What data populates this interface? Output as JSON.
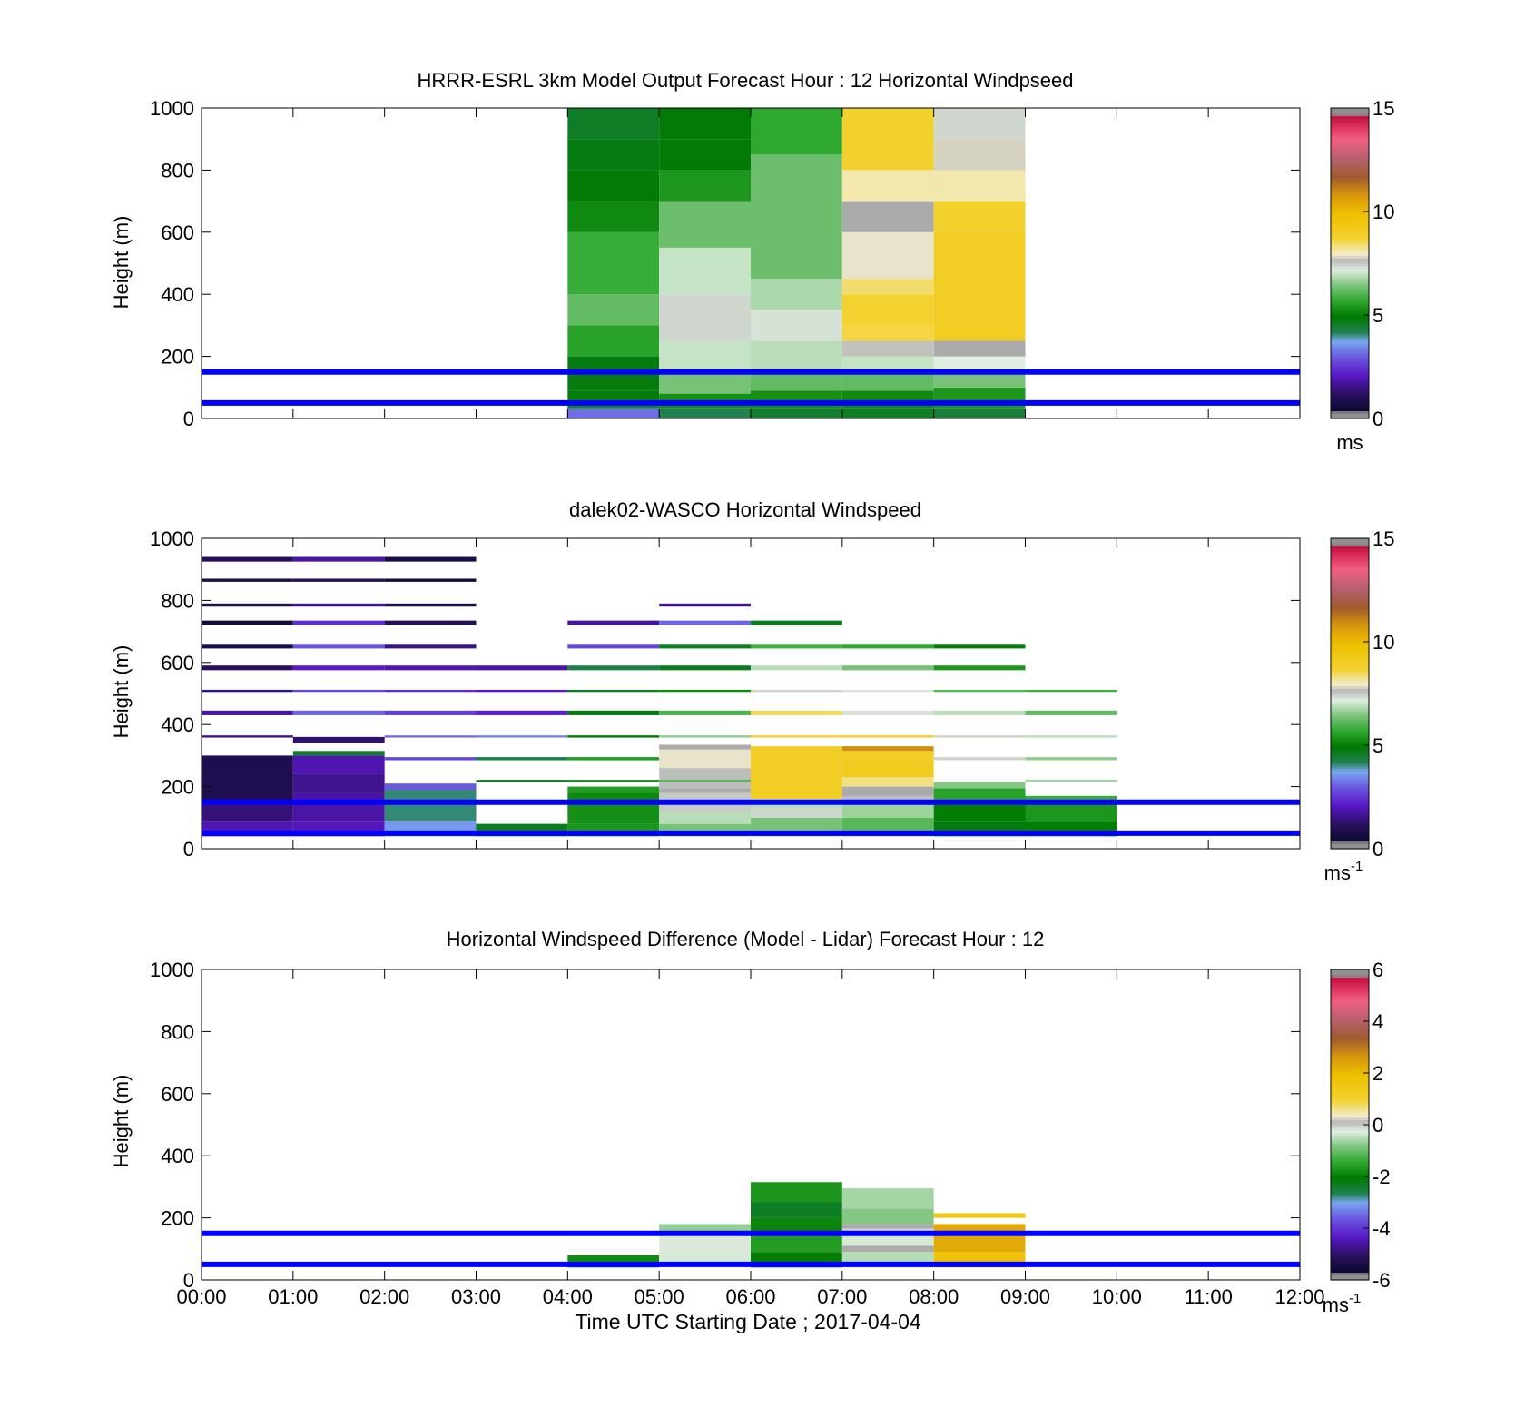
{
  "figure": {
    "xlabel": "Time UTC  Starting Date ; 2017-04-04",
    "x_ticks": [
      "00:00",
      "01:00",
      "02:00",
      "03:00",
      "04:00",
      "05:00",
      "06:00",
      "07:00",
      "08:00",
      "09:00",
      "10:00",
      "11:00",
      "12:00"
    ]
  },
  "chart_data": [
    {
      "type": "heatmap",
      "title": "HRRR-ESRL 3km Model Output   Forecast Hour : 12 Horizontal Windpseed",
      "ylabel": "Height (m)",
      "xlim": [
        0,
        12
      ],
      "ylim": [
        0,
        1000
      ],
      "y_ticks": [
        0,
        200,
        400,
        600,
        800,
        1000
      ],
      "grid": false,
      "colorbar": {
        "min": 0,
        "max": 15,
        "ticks": [
          0,
          5,
          10,
          15
        ],
        "unit": "ms",
        "unit_sup": ""
      },
      "reference_lines_m": [
        50,
        150
      ],
      "cells": [
        {
          "x0": 4,
          "x1": 5,
          "bands": [
            [
              0,
              30,
              3.2
            ],
            [
              30,
              60,
              4.5
            ],
            [
              60,
              90,
              5.0
            ],
            [
              90,
              200,
              4.8
            ],
            [
              200,
              300,
              5.6
            ],
            [
              300,
              400,
              6.2
            ],
            [
              400,
              600,
              5.8
            ],
            [
              600,
              700,
              5.2
            ],
            [
              700,
              800,
              4.9
            ],
            [
              800,
              900,
              4.8
            ],
            [
              900,
              1000,
              4.6
            ]
          ]
        },
        {
          "x0": 5,
          "x1": 6,
          "bands": [
            [
              0,
              30,
              4.2
            ],
            [
              30,
              80,
              5.3
            ],
            [
              80,
              150,
              6.4
            ],
            [
              150,
              250,
              7.0
            ],
            [
              250,
              400,
              7.4
            ],
            [
              400,
              550,
              7.0
            ],
            [
              550,
              700,
              6.3
            ],
            [
              700,
              800,
              5.4
            ],
            [
              800,
              900,
              4.9
            ],
            [
              900,
              1000,
              4.9
            ]
          ]
        },
        {
          "x0": 6,
          "x1": 7,
          "bands": [
            [
              0,
              30,
              4.5
            ],
            [
              30,
              90,
              5.3
            ],
            [
              90,
              150,
              6.2
            ],
            [
              150,
              250,
              6.9
            ],
            [
              250,
              350,
              7.3
            ],
            [
              350,
              450,
              6.8
            ],
            [
              450,
              850,
              6.3
            ],
            [
              850,
              1000,
              5.7
            ]
          ]
        },
        {
          "x0": 7,
          "x1": 8,
          "bands": [
            [
              0,
              30,
              4.6
            ],
            [
              30,
              90,
              5.2
            ],
            [
              90,
              150,
              6.2
            ],
            [
              150,
              200,
              7.0
            ],
            [
              200,
              250,
              7.7
            ],
            [
              250,
              300,
              8.6
            ],
            [
              300,
              400,
              8.7
            ],
            [
              400,
              450,
              8.4
            ],
            [
              450,
              600,
              7.9
            ],
            [
              600,
              700,
              "gray"
            ],
            [
              700,
              800,
              8.1
            ],
            [
              800,
              1000,
              8.8
            ]
          ]
        },
        {
          "x0": 8,
          "x1": 9,
          "bands": [
            [
              0,
              30,
              4.4
            ],
            [
              30,
              100,
              5.4
            ],
            [
              100,
              150,
              6.4
            ],
            [
              150,
              200,
              7.2
            ],
            [
              200,
              250,
              "gray"
            ],
            [
              250,
              600,
              9.0
            ],
            [
              600,
              700,
              8.8
            ],
            [
              700,
              800,
              8.1
            ],
            [
              800,
              900,
              7.8
            ],
            [
              900,
              1000,
              7.4
            ]
          ]
        }
      ]
    },
    {
      "type": "heatmap",
      "title": "dalek02-WASCO  Horizontal Windspeed",
      "ylabel": "Height (m)",
      "xlim": [
        0,
        12
      ],
      "ylim": [
        0,
        1000
      ],
      "y_ticks": [
        0,
        200,
        400,
        600,
        800,
        1000
      ],
      "grid": false,
      "colorbar": {
        "min": 0,
        "max": 15,
        "ticks": [
          0,
          5,
          10,
          15
        ],
        "unit": "ms",
        "unit_sup": "-1"
      },
      "reference_lines_m": [
        50,
        150
      ],
      "cells": [
        {
          "x0": 0,
          "x1": 1,
          "bands": [
            [
              40,
              90,
              1.9
            ],
            [
              90,
              150,
              1.4
            ],
            [
              150,
              300,
              0.9
            ],
            [
              430,
              445,
              1.8
            ],
            [
              575,
              590,
              1.2
            ],
            [
              645,
              660,
              0.8
            ],
            [
              720,
              735,
              0.6
            ],
            [
              925,
              940,
              1.1
            ],
            [
              860,
              870,
              0.8
            ],
            [
              780,
              790,
              0.8
            ],
            [
              505,
              512,
              1.5
            ],
            [
              358,
              365,
              1.6
            ]
          ]
        },
        {
          "x0": 1,
          "x1": 2,
          "bands": [
            [
              40,
              90,
              2.0
            ],
            [
              90,
              180,
              1.8
            ],
            [
              180,
              240,
              1.6
            ],
            [
              240,
              300,
              1.9
            ],
            [
              300,
              315,
              4.5
            ],
            [
              340,
              360,
              1.3
            ],
            [
              430,
              445,
              3.1
            ],
            [
              575,
              590,
              2.1
            ],
            [
              645,
              660,
              2.9
            ],
            [
              720,
              735,
              2.4
            ],
            [
              925,
              940,
              1.8
            ],
            [
              860,
              870,
              1.1
            ],
            [
              780,
              790,
              1.6
            ],
            [
              505,
              512,
              2.8
            ]
          ]
        },
        {
          "x0": 2,
          "x1": 3,
          "bands": [
            [
              40,
              90,
              3.6
            ],
            [
              90,
              190,
              4.1
            ],
            [
              190,
              210,
              3.0
            ],
            [
              430,
              445,
              2.6
            ],
            [
              575,
              590,
              1.9
            ],
            [
              645,
              660,
              1.5
            ],
            [
              720,
              735,
              1.0
            ],
            [
              925,
              940,
              0.8
            ],
            [
              860,
              870,
              0.6
            ],
            [
              780,
              790,
              0.9
            ],
            [
              505,
              512,
              2.4
            ],
            [
              358,
              365,
              3.2
            ],
            [
              285,
              295,
              2.8
            ]
          ]
        },
        {
          "x0": 3,
          "x1": 4,
          "bands": [
            [
              40,
              80,
              4.7
            ],
            [
              430,
              445,
              2.2
            ],
            [
              575,
              590,
              1.8
            ],
            [
              505,
              512,
              2.1
            ],
            [
              358,
              365,
              3.4
            ],
            [
              285,
              295,
              4.3
            ],
            [
              215,
              222,
              4.6
            ]
          ]
        },
        {
          "x0": 4,
          "x1": 5,
          "bands": [
            [
              40,
              80,
              5.4
            ],
            [
              80,
              150,
              5.3
            ],
            [
              150,
              180,
              5.2
            ],
            [
              180,
              200,
              5.5
            ],
            [
              430,
              445,
              4.8
            ],
            [
              575,
              590,
              4.3
            ],
            [
              645,
              660,
              2.7
            ],
            [
              720,
              735,
              1.7
            ],
            [
              505,
              512,
              4.6
            ],
            [
              358,
              365,
              4.9
            ],
            [
              285,
              295,
              5.5
            ],
            [
              215,
              222,
              5.3
            ]
          ]
        },
        {
          "x0": 5,
          "x1": 6,
          "bands": [
            [
              40,
              80,
              6.4
            ],
            [
              80,
              120,
              6.9
            ],
            [
              120,
              180,
              7.5
            ],
            [
              180,
              195,
              "gray"
            ],
            [
              195,
              260,
              7.6
            ],
            [
              260,
              320,
              7.9
            ],
            [
              320,
              335,
              "gray"
            ],
            [
              430,
              445,
              6.0
            ],
            [
              575,
              590,
              4.7
            ],
            [
              645,
              660,
              4.6
            ],
            [
              720,
              735,
              3.1
            ],
            [
              780,
              790,
              1.6
            ],
            [
              505,
              512,
              5.2
            ],
            [
              358,
              365,
              6.6
            ],
            [
              215,
              222,
              6.1
            ]
          ]
        },
        {
          "x0": 6,
          "x1": 7,
          "bands": [
            [
              40,
              100,
              6.4
            ],
            [
              100,
              130,
              7.4
            ],
            [
              130,
              160,
              6.9
            ],
            [
              160,
              330,
              9.0
            ],
            [
              430,
              445,
              8.5
            ],
            [
              575,
              590,
              6.9
            ],
            [
              645,
              660,
              5.9
            ],
            [
              720,
              735,
              4.7
            ],
            [
              505,
              512,
              7.8
            ],
            [
              358,
              365,
              8.8
            ]
          ]
        },
        {
          "x0": 7,
          "x1": 8,
          "bands": [
            [
              40,
              100,
              6.1
            ],
            [
              100,
              150,
              6.7
            ],
            [
              150,
              170,
              7.6
            ],
            [
              170,
              200,
              "gray"
            ],
            [
              200,
              230,
              8.3
            ],
            [
              230,
              290,
              9.1
            ],
            [
              290,
              315,
              9.0
            ],
            [
              315,
              330,
              10.9
            ],
            [
              358,
              365,
              8.9
            ],
            [
              430,
              445,
              7.3
            ],
            [
              575,
              590,
              6.4
            ],
            [
              645,
              660,
              5.7
            ],
            [
              505,
              512,
              7.1
            ]
          ]
        },
        {
          "x0": 8,
          "x1": 9,
          "bands": [
            [
              40,
              90,
              4.8
            ],
            [
              90,
              160,
              5.0
            ],
            [
              160,
              195,
              5.6
            ],
            [
              195,
              215,
              6.5
            ],
            [
              285,
              295,
              7.4
            ],
            [
              358,
              365,
              7.8
            ],
            [
              430,
              445,
              6.9
            ],
            [
              505,
              512,
              6.1
            ],
            [
              575,
              590,
              5.4
            ],
            [
              645,
              660,
              4.8
            ]
          ]
        },
        {
          "x0": 9,
          "x1": 10,
          "bands": [
            [
              40,
              90,
              5.0
            ],
            [
              90,
              150,
              5.4
            ],
            [
              150,
              170,
              5.8
            ],
            [
              215,
              222,
              6.7
            ],
            [
              285,
              295,
              6.6
            ],
            [
              358,
              365,
              6.9
            ],
            [
              430,
              445,
              6.2
            ],
            [
              505,
              512,
              5.9
            ]
          ]
        }
      ]
    },
    {
      "type": "heatmap",
      "title": "Horizontal Windspeed Difference (Model - Lidar) Forecast Hour : 12",
      "ylabel": "Height (m)",
      "xlim": [
        0,
        12
      ],
      "ylim": [
        0,
        1000
      ],
      "y_ticks": [
        0,
        200,
        400,
        600,
        800,
        1000
      ],
      "grid": false,
      "colorbar": {
        "min": -6,
        "max": 6,
        "ticks": [
          -6,
          -4,
          -2,
          0,
          2,
          4,
          6
        ],
        "unit": "ms",
        "unit_sup": "-1"
      },
      "reference_lines_m": [
        50,
        150
      ],
      "cells": [
        {
          "x0": 4,
          "x1": 5,
          "bands": [
            [
              40,
              80,
              -1.8
            ]
          ]
        },
        {
          "x0": 5,
          "x1": 6,
          "bands": [
            [
              40,
              90,
              -0.3
            ],
            [
              90,
              150,
              -0.2
            ],
            [
              150,
              180,
              -0.7
            ]
          ]
        },
        {
          "x0": 6,
          "x1": 7,
          "bands": [
            [
              40,
              90,
              -2.0
            ],
            [
              90,
              150,
              -1.6
            ],
            [
              150,
              200,
              -1.9
            ],
            [
              200,
              250,
              -2.3
            ],
            [
              250,
              315,
              -1.7
            ]
          ]
        },
        {
          "x0": 7,
          "x1": 8,
          "bands": [
            [
              40,
              90,
              -0.5
            ],
            [
              90,
              110,
              "gray"
            ],
            [
              110,
              150,
              -0.3
            ],
            [
              150,
              165,
              -0.1
            ],
            [
              165,
              180,
              "gray"
            ],
            [
              180,
              230,
              -0.8
            ],
            [
              230,
              295,
              -0.6
            ]
          ]
        },
        {
          "x0": 8,
          "x1": 9,
          "bands": [
            [
              40,
              60,
              2.0
            ],
            [
              60,
              90,
              1.8
            ],
            [
              90,
              180,
              2.3
            ],
            [
              200,
              215,
              1.6
            ]
          ]
        }
      ]
    }
  ]
}
